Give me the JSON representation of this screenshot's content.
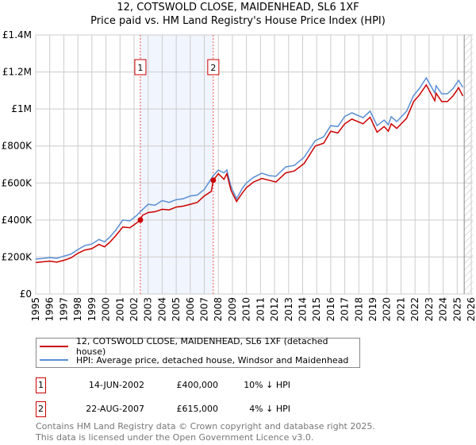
{
  "chart_data": {
    "type": "line",
    "title": "12, COTSWOLD CLOSE, MAIDENHEAD, SL6 1XF",
    "subtitle": "Price paid vs. HM Land Registry's House Price Index (HPI)",
    "xlabel": "",
    "ylabel": "",
    "xlim": [
      1995,
      2026
    ],
    "ylim": [
      0,
      1400000
    ],
    "grid": true,
    "y_ticks": [
      {
        "v": 0,
        "label": "£0"
      },
      {
        "v": 200000,
        "label": "£200K"
      },
      {
        "v": 400000,
        "label": "£400K"
      },
      {
        "v": 600000,
        "label": "£600K"
      },
      {
        "v": 800000,
        "label": "£800K"
      },
      {
        "v": 1000000,
        "label": "£1M"
      },
      {
        "v": 1200000,
        "label": "£1.2M"
      },
      {
        "v": 1400000,
        "label": "£1.4M"
      }
    ],
    "x_ticks": [
      "1995",
      "1996",
      "1997",
      "1998",
      "1999",
      "2000",
      "2001",
      "2002",
      "2003",
      "2004",
      "2005",
      "2006",
      "2007",
      "2008",
      "2009",
      "2010",
      "2011",
      "2012",
      "2013",
      "2014",
      "2015",
      "2016",
      "2017",
      "2018",
      "2019",
      "2020",
      "2021",
      "2022",
      "2023",
      "2024",
      "2025",
      "2026"
    ],
    "shaded_span": [
      2002.45,
      2007.64
    ],
    "hatched_from": 2025.5,
    "series": [
      {
        "name": "12, COTSWOLD CLOSE, MAIDENHEAD, SL6 1XF (detached house)",
        "color": "#cc0000",
        "x": [
          1995,
          1996,
          1996.5,
          1997,
          1997.5,
          1998,
          1998.5,
          1999,
          1999.5,
          1999.9,
          2000.3,
          2000.7,
          2001.2,
          2001.7,
          2002.2,
          2002.45,
          2002.6,
          2003,
          2003.5,
          2004,
          2004.5,
          2005,
          2005.5,
          2006,
          2006.5,
          2007,
          2007.5,
          2007.64,
          2008,
          2008.4,
          2008.6,
          2008.9,
          2009.3,
          2009.7,
          2010,
          2010.5,
          2011.1,
          2011.6,
          2012.1,
          2012.8,
          2013.4,
          2014.1,
          2014.9,
          2015.5,
          2016,
          2016.5,
          2017,
          2017.5,
          2018.3,
          2018.8,
          2019.3,
          2019.8,
          2020.1,
          2020.3,
          2020.7,
          2021.4,
          2021.9,
          2022.3,
          2022.8,
          2023.4,
          2023.5,
          2023.9,
          2024.3,
          2024.7,
          2025.1,
          2025.4
        ],
        "y": [
          170000,
          178000,
          172000,
          182000,
          195000,
          220000,
          238000,
          245000,
          268000,
          255000,
          282000,
          315000,
          362000,
          358000,
          385000,
          400000,
          425000,
          440000,
          445000,
          458000,
          455000,
          470000,
          475000,
          485000,
          495000,
          530000,
          555000,
          615000,
          650000,
          620000,
          650000,
          560000,
          500000,
          545000,
          575000,
          605000,
          625000,
          615000,
          605000,
          655000,
          665000,
          705000,
          800000,
          815000,
          880000,
          870000,
          920000,
          945000,
          920000,
          955000,
          875000,
          905000,
          880000,
          920000,
          895000,
          950000,
          1040000,
          1075000,
          1130000,
          1045000,
          1085000,
          1040000,
          1040000,
          1070000,
          1115000,
          1070000
        ]
      },
      {
        "name": "HPI: Average price, detached house, Windsor and Maidenhead",
        "color": "#5b8fd4",
        "x": [
          1995,
          1995.5,
          1996,
          1996.5,
          1997,
          1997.5,
          1998,
          1998.5,
          1999,
          1999.5,
          1999.9,
          2000.3,
          2000.7,
          2001.2,
          2001.7,
          2002.2,
          2002.45,
          2003,
          2003.5,
          2004,
          2004.5,
          2005,
          2005.5,
          2006,
          2006.5,
          2007,
          2007.64,
          2008,
          2008.4,
          2008.6,
          2008.9,
          2009.3,
          2009.7,
          2010,
          2010.5,
          2011.1,
          2011.6,
          2012.1,
          2012.8,
          2013.4,
          2014.1,
          2014.9,
          2015.5,
          2016,
          2016.5,
          2017,
          2017.5,
          2018.3,
          2018.8,
          2019.3,
          2019.8,
          2020.1,
          2020.3,
          2020.7,
          2021.4,
          2021.9,
          2022.3,
          2022.8,
          2023.4,
          2023.5,
          2023.9,
          2024.3,
          2024.7,
          2025.1,
          2025.4
        ],
        "y": [
          189000,
          192000,
          197000,
          193000,
          205000,
          215000,
          240000,
          262000,
          270000,
          295000,
          282000,
          310000,
          345000,
          400000,
          395000,
          425000,
          445000,
          485000,
          480000,
          505000,
          495000,
          510000,
          515000,
          530000,
          535000,
          565000,
          640000,
          670000,
          655000,
          670000,
          580000,
          515000,
          570000,
          601000,
          630000,
          653000,
          640000,
          636000,
          687000,
          695000,
          739000,
          829000,
          850000,
          910000,
          905000,
          960000,
          979000,
          953000,
          988000,
          910000,
          940000,
          915000,
          958000,
          932000,
          988000,
          1073000,
          1110000,
          1168000,
          1087000,
          1125000,
          1082000,
          1082000,
          1110000,
          1155000,
          1117000
        ]
      }
    ],
    "transactions": [
      {
        "num": "1",
        "x": 2002.45,
        "y": 400000,
        "date": "14-JUN-2002",
        "price": "£400,000",
        "hpi": "10% ↓ HPI"
      },
      {
        "num": "2",
        "x": 2007.64,
        "y": 615000,
        "date": "22-AUG-2007",
        "price": "£615,000",
        "hpi": "4% ↓ HPI"
      }
    ]
  },
  "footer": {
    "line1": "Contains HM Land Registry data © Crown copyright and database right 2025.",
    "line2": "This data is licensed under the Open Government Licence v3.0."
  }
}
